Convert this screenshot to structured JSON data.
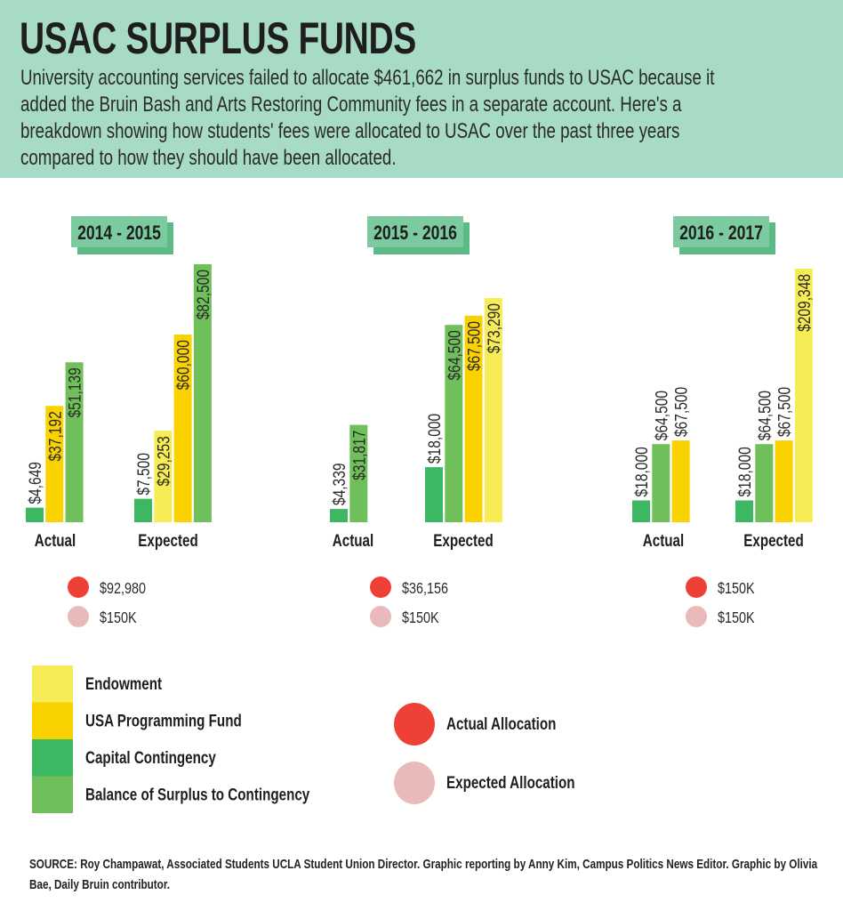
{
  "header": {
    "title": "USAC SURPLUS FUNDS",
    "description_lines": [
      "University accounting services failed to allocate $461,662 in surplus funds to USAC because it",
      "added the Bruin Bash and Arts Restoring Community fees in a separate account. Here's a",
      "breakdown showing how students' fees were allocated to USAC over the past three years",
      "compared to how they should have been allocated."
    ]
  },
  "colors": {
    "header_bg": "#a8dbc6",
    "badge": "#7ccba0",
    "badge_shadow": "#5cbb85",
    "Endowment": "#f7ec55",
    "USA Programming Fund": "#f9d200",
    "Capital Contingency": "#3cb863",
    "Balance of Surplus to Contingency": "#6fc05a",
    "actual_allocation": "#ef4038",
    "expected_allocation": "#eababa"
  },
  "chart_data": [
    {
      "type": "bar",
      "title": "2014 - 2015",
      "groups": [
        {
          "label": "Actual",
          "bars": [
            {
              "series": "Capital Contingency",
              "value": 4649,
              "label": "$4,649"
            },
            {
              "series": "USA Programming Fund",
              "value": 37192,
              "label": "$37,192"
            },
            {
              "series": "Balance of Surplus to Contingency",
              "value": 51139,
              "label": "$51,139"
            }
          ]
        },
        {
          "label": "Expected",
          "bars": [
            {
              "series": "Capital Contingency",
              "value": 7500,
              "label": "$7,500"
            },
            {
              "series": "Endowment",
              "value": 29253,
              "label": "$29,253"
            },
            {
              "series": "USA Programming Fund",
              "value": 60000,
              "label": "$60,000"
            },
            {
              "series": "Balance of Surplus to Contingency",
              "value": 82500,
              "label": "$82,500"
            }
          ]
        }
      ],
      "allocations": {
        "actual": "$92,980",
        "expected": "$150K"
      }
    },
    {
      "type": "bar",
      "title": "2015 - 2016",
      "groups": [
        {
          "label": "Actual",
          "bars": [
            {
              "series": "Capital Contingency",
              "value": 4339,
              "label": "$4,339"
            },
            {
              "series": "Balance of Surplus to Contingency",
              "value": 31817,
              "label": "$31,817"
            }
          ]
        },
        {
          "label": "Expected",
          "bars": [
            {
              "series": "Capital Contingency",
              "value": 18000,
              "label": "$18,000"
            },
            {
              "series": "Balance of Surplus to Contingency",
              "value": 64500,
              "label": "$64,500"
            },
            {
              "series": "USA Programming Fund",
              "value": 67500,
              "label": "$67,500"
            },
            {
              "series": "Endowment",
              "value": 73290,
              "label": "$73,290"
            }
          ]
        }
      ],
      "allocations": {
        "actual": "$36,156",
        "expected": "$150K"
      }
    },
    {
      "type": "bar",
      "title": "2016 - 2017",
      "groups": [
        {
          "label": "Actual",
          "bars": [
            {
              "series": "Capital Contingency",
              "value": 18000,
              "label": "$18,000"
            },
            {
              "series": "Balance of Surplus to Contingency",
              "value": 64500,
              "label": "$64,500"
            },
            {
              "series": "USA Programming Fund",
              "value": 67500,
              "label": "$67,500"
            }
          ]
        },
        {
          "label": "Expected",
          "bars": [
            {
              "series": "Capital Contingency",
              "value": 18000,
              "label": "$18,000"
            },
            {
              "series": "Balance of Surplus to Contingency",
              "value": 64500,
              "label": "$64,500"
            },
            {
              "series": "USA Programming Fund",
              "value": 67500,
              "label": "$67,500"
            },
            {
              "series": "Endowment",
              "value": 209348,
              "label": "$209,348"
            }
          ]
        }
      ],
      "allocations": {
        "actual": "$150K",
        "expected": "$150K"
      }
    }
  ],
  "legend": {
    "series": [
      "Endowment",
      "USA Programming Fund",
      "Capital Contingency",
      "Balance of Surplus to Contingency"
    ],
    "allocations": [
      "Actual Allocation",
      "Expected Allocation"
    ]
  },
  "source": "SOURCE: Roy Champawat, Associated Students UCLA Student Union Director. Graphic reporting by Anny Kim, Campus Politics News Editor. Graphic by Olivia Bae, Daily Bruin contributor."
}
